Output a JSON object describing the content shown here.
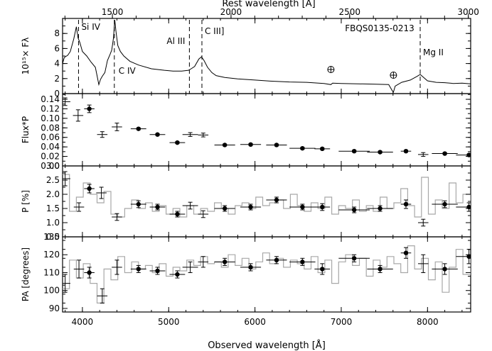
{
  "chart_data": {
    "type": "line",
    "figure_label": "FBQS0135-0213",
    "top_axis": {
      "label": "Rest wavelength [Å]",
      "range": [
        1290,
        3010
      ],
      "ticks": [
        "1500",
        "2000",
        "2500",
        "3000"
      ],
      "tick_values": [
        1500,
        2000,
        2500,
        3000
      ]
    },
    "x_axis": {
      "label": "Observed wavelength [Å]",
      "range": [
        3770,
        8500
      ],
      "ticks": [
        "4000",
        "5000",
        "6000",
        "7000",
        "8000"
      ],
      "tick_values": [
        4000,
        5000,
        6000,
        7000,
        8000
      ]
    },
    "lines": [
      {
        "label": "Si IV",
        "x": 3955
      },
      {
        "label": "C IV",
        "x": 4370
      },
      {
        "label": "Al III",
        "x": 5240
      },
      {
        "label": "C III]",
        "x": 5385
      },
      {
        "label": "Mg II",
        "x": 7915
      }
    ],
    "telluric_marks": [
      6880,
      7605
    ],
    "panels": [
      {
        "name": "flux",
        "ylabel": "10¹⁵× Fλ",
        "ylim": [
          0,
          10
        ],
        "yticks": [
          "0",
          "2",
          "4",
          "6",
          "8"
        ],
        "ytick_values": [
          0,
          2,
          4,
          6,
          8
        ],
        "spectrum": {
          "x": [
            3770,
            3790,
            3830,
            3860,
            3900,
            3930,
            3950,
            3970,
            4000,
            4050,
            4100,
            4150,
            4170,
            4190,
            4210,
            4230,
            4260,
            4290,
            4320,
            4340,
            4360,
            4375,
            4390,
            4410,
            4440,
            4480,
            4550,
            4650,
            4800,
            4950,
            5050,
            5150,
            5230,
            5260,
            5300,
            5350,
            5380,
            5410,
            5450,
            5500,
            5550,
            5650,
            5800,
            6000,
            6200,
            6400,
            6600,
            6800,
            6880,
            6900,
            7000,
            7200,
            7400,
            7550,
            7590,
            7605,
            7625,
            7700,
            7800,
            7880,
            7915,
            7950,
            8000,
            8100,
            8200,
            8300,
            8400,
            8500
          ],
          "y": [
            4.0,
            4.8,
            5.1,
            5.6,
            7.3,
            8.9,
            7.4,
            6.8,
            5.6,
            5.0,
            4.2,
            3.5,
            2.4,
            1.2,
            1.9,
            2.3,
            2.8,
            4.4,
            5.2,
            5.8,
            7.4,
            9.8,
            8.2,
            6.4,
            5.6,
            5.0,
            4.3,
            3.8,
            3.3,
            3.1,
            3.0,
            3.0,
            3.1,
            3.3,
            3.6,
            4.6,
            4.9,
            4.4,
            3.5,
            2.8,
            2.4,
            2.15,
            1.95,
            1.8,
            1.65,
            1.55,
            1.5,
            1.35,
            1.2,
            1.4,
            1.35,
            1.3,
            1.25,
            1.2,
            0.4,
            0.2,
            1.0,
            1.5,
            1.8,
            2.3,
            2.55,
            2.2,
            1.7,
            1.5,
            1.45,
            1.35,
            1.4,
            1.3
          ]
        }
      },
      {
        "name": "polarized-flux",
        "ylabel": "Flux*P",
        "ylim": [
          0.0,
          0.152
        ],
        "yticks": [
          "0.00",
          "0.02",
          "0.04",
          "0.06",
          "0.08",
          "0.10",
          "0.12",
          "0.14"
        ],
        "ytick_values": [
          0,
          0.02,
          0.04,
          0.06,
          0.08,
          0.1,
          0.12,
          0.14
        ],
        "points": [
          {
            "x": 3800,
            "y": 0.135,
            "xerr": 60,
            "yerr": 0.008,
            "filled": false
          },
          {
            "x": 3950,
            "y": 0.106,
            "xerr": 60,
            "yerr": 0.012,
            "filled": false
          },
          {
            "x": 4080,
            "y": 0.12,
            "xerr": 60,
            "yerr": 0.008,
            "filled": true
          },
          {
            "x": 4230,
            "y": 0.066,
            "xerr": 60,
            "yerr": 0.006,
            "filled": false
          },
          {
            "x": 4400,
            "y": 0.082,
            "xerr": 60,
            "yerr": 0.008,
            "filled": false
          },
          {
            "x": 4650,
            "y": 0.078,
            "xerr": 90,
            "yerr": 0.002,
            "filled": true
          },
          {
            "x": 4870,
            "y": 0.066,
            "xerr": 90,
            "yerr": 0.002,
            "filled": true
          },
          {
            "x": 5100,
            "y": 0.049,
            "xerr": 90,
            "yerr": 0.002,
            "filled": true
          },
          {
            "x": 5250,
            "y": 0.066,
            "xerr": 90,
            "yerr": 0.004,
            "filled": false
          },
          {
            "x": 5400,
            "y": 0.065,
            "xerr": 60,
            "yerr": 0.004,
            "filled": false
          },
          {
            "x": 5650,
            "y": 0.044,
            "xerr": 120,
            "yerr": 0.002,
            "filled": true
          },
          {
            "x": 5950,
            "y": 0.045,
            "xerr": 120,
            "yerr": 0.002,
            "filled": true
          },
          {
            "x": 6250,
            "y": 0.044,
            "xerr": 120,
            "yerr": 0.002,
            "filled": true
          },
          {
            "x": 6550,
            "y": 0.037,
            "xerr": 150,
            "yerr": 0.002,
            "filled": true
          },
          {
            "x": 6780,
            "y": 0.036,
            "xerr": 90,
            "yerr": 0.002,
            "filled": true
          },
          {
            "x": 7150,
            "y": 0.031,
            "xerr": 180,
            "yerr": 0.002,
            "filled": true
          },
          {
            "x": 7450,
            "y": 0.029,
            "xerr": 150,
            "yerr": 0.002,
            "filled": true
          },
          {
            "x": 7750,
            "y": 0.031,
            "xerr": 60,
            "yerr": 0.002,
            "filled": true
          },
          {
            "x": 7950,
            "y": 0.024,
            "xerr": 60,
            "yerr": 0.004,
            "filled": false
          },
          {
            "x": 8200,
            "y": 0.026,
            "xerr": 150,
            "yerr": 0.002,
            "filled": true
          },
          {
            "x": 8480,
            "y": 0.023,
            "xerr": 150,
            "yerr": 0.002,
            "filled": true
          }
        ]
      },
      {
        "name": "polarization-degree",
        "ylabel": "P [%]",
        "ylim": [
          0.5,
          3.0
        ],
        "yticks": [
          "0.5",
          "1.0",
          "1.5",
          "2.0",
          "2.5",
          "3.0"
        ],
        "ytick_values": [
          0.5,
          1.0,
          1.5,
          2.0,
          2.5,
          3.0
        ],
        "binned": {
          "x": [
            3770,
            3850,
            3930,
            4010,
            4090,
            4170,
            4250,
            4330,
            4410,
            4490,
            4570,
            4650,
            4730,
            4810,
            4890,
            4970,
            5050,
            5130,
            5210,
            5290,
            5370,
            5450,
            5530,
            5610,
            5690,
            5770,
            5850,
            5930,
            6010,
            6090,
            6170,
            6250,
            6330,
            6410,
            6490,
            6570,
            6650,
            6730,
            6810,
            6890,
            6970,
            7050,
            7130,
            7210,
            7290,
            7370,
            7450,
            7530,
            7610,
            7690,
            7770,
            7850,
            7930,
            8010,
            8090,
            8170,
            8250,
            8330,
            8410,
            8500
          ],
          "y": [
            2.7,
            1.4,
            1.9,
            2.4,
            2.0,
            1.7,
            2.1,
            1.3,
            1.2,
            1.5,
            1.8,
            1.5,
            1.7,
            1.4,
            1.6,
            1.3,
            1.5,
            1.2,
            1.6,
            1.3,
            1.5,
            1.4,
            1.7,
            1.5,
            1.3,
            1.6,
            1.7,
            1.5,
            1.9,
            1.6,
            1.7,
            1.8,
            1.5,
            2.0,
            1.6,
            1.4,
            1.7,
            1.5,
            1.9,
            1.3,
            1.6,
            1.5,
            1.8,
            1.4,
            1.6,
            1.4,
            1.9,
            1.5,
            1.7,
            2.2,
            1.6,
            1.2,
            2.6,
            1.3,
            1.8,
            1.5,
            2.4,
            1.7,
            2.0,
            1.5
          ]
        },
        "points": [
          {
            "x": 3800,
            "y": 2.55,
            "xerr": 60,
            "yerr": 0.25,
            "filled": false
          },
          {
            "x": 3960,
            "y": 1.55,
            "xerr": 60,
            "yerr": 0.15,
            "filled": false
          },
          {
            "x": 4080,
            "y": 2.2,
            "xerr": 60,
            "yerr": 0.15,
            "filled": true
          },
          {
            "x": 4220,
            "y": 2.05,
            "xerr": 60,
            "yerr": 0.2,
            "filled": false
          },
          {
            "x": 4400,
            "y": 1.2,
            "xerr": 60,
            "yerr": 0.12,
            "filled": false
          },
          {
            "x": 4650,
            "y": 1.65,
            "xerr": 90,
            "yerr": 0.12,
            "filled": true
          },
          {
            "x": 4870,
            "y": 1.55,
            "xerr": 90,
            "yerr": 0.1,
            "filled": true
          },
          {
            "x": 5100,
            "y": 1.3,
            "xerr": 90,
            "yerr": 0.1,
            "filled": true
          },
          {
            "x": 5250,
            "y": 1.6,
            "xerr": 90,
            "yerr": 0.12,
            "filled": false
          },
          {
            "x": 5400,
            "y": 1.3,
            "xerr": 60,
            "yerr": 0.12,
            "filled": false
          },
          {
            "x": 5650,
            "y": 1.5,
            "xerr": 120,
            "yerr": 0.1,
            "filled": true
          },
          {
            "x": 5950,
            "y": 1.55,
            "xerr": 120,
            "yerr": 0.1,
            "filled": true
          },
          {
            "x": 6250,
            "y": 1.8,
            "xerr": 120,
            "yerr": 0.1,
            "filled": true
          },
          {
            "x": 6550,
            "y": 1.55,
            "xerr": 150,
            "yerr": 0.1,
            "filled": true
          },
          {
            "x": 6780,
            "y": 1.55,
            "xerr": 90,
            "yerr": 0.12,
            "filled": true
          },
          {
            "x": 7150,
            "y": 1.45,
            "xerr": 180,
            "yerr": 0.1,
            "filled": true
          },
          {
            "x": 7450,
            "y": 1.5,
            "xerr": 150,
            "yerr": 0.1,
            "filled": true
          },
          {
            "x": 7750,
            "y": 1.65,
            "xerr": 60,
            "yerr": 0.15,
            "filled": true
          },
          {
            "x": 7950,
            "y": 1.0,
            "xerr": 60,
            "yerr": 0.12,
            "filled": false
          },
          {
            "x": 8200,
            "y": 1.65,
            "xerr": 150,
            "yerr": 0.12,
            "filled": true
          },
          {
            "x": 8480,
            "y": 1.55,
            "xerr": 150,
            "yerr": 0.15,
            "filled": true
          }
        ]
      },
      {
        "name": "polarization-angle",
        "ylabel": "PA [degrees]",
        "ylim": [
          88,
          130
        ],
        "yticks": [
          "90",
          "100",
          "110",
          "120",
          "130"
        ],
        "ytick_values": [
          90,
          100,
          110,
          120,
          130
        ],
        "binned": {
          "x": [
            3770,
            3850,
            3930,
            4010,
            4090,
            4170,
            4250,
            4330,
            4410,
            4490,
            4570,
            4650,
            4730,
            4810,
            4890,
            4970,
            5050,
            5130,
            5210,
            5290,
            5370,
            5450,
            5530,
            5610,
            5690,
            5770,
            5850,
            5930,
            6010,
            6090,
            6170,
            6250,
            6330,
            6410,
            6490,
            6570,
            6650,
            6730,
            6810,
            6890,
            6970,
            7050,
            7130,
            7210,
            7290,
            7370,
            7450,
            7530,
            7610,
            7690,
            7770,
            7850,
            7930,
            8010,
            8090,
            8170,
            8250,
            8330,
            8410,
            8500
          ],
          "y": [
            101,
            117,
            107,
            115,
            104,
            93,
            112,
            106,
            119,
            110,
            116,
            112,
            114,
            110,
            115,
            108,
            113,
            111,
            117,
            114,
            119,
            115,
            116,
            113,
            120,
            114,
            118,
            112,
            116,
            121,
            115,
            118,
            113,
            117,
            115,
            112,
            119,
            110,
            117,
            104,
            116,
            120,
            114,
            118,
            108,
            117,
            113,
            119,
            115,
            110,
            125,
            112,
            118,
            106,
            116,
            99,
            113,
            123,
            109,
            118
          ]
        },
        "points": [
          {
            "x": 3800,
            "y": 104,
            "xerr": 60,
            "yerr": 5,
            "filled": false
          },
          {
            "x": 3960,
            "y": 112,
            "xerr": 60,
            "yerr": 5,
            "filled": false
          },
          {
            "x": 4080,
            "y": 110,
            "xerr": 60,
            "yerr": 3,
            "filled": true
          },
          {
            "x": 4230,
            "y": 97,
            "xerr": 60,
            "yerr": 4,
            "filled": false
          },
          {
            "x": 4400,
            "y": 113,
            "xerr": 60,
            "yerr": 4,
            "filled": false
          },
          {
            "x": 4650,
            "y": 112,
            "xerr": 90,
            "yerr": 2,
            "filled": true
          },
          {
            "x": 4870,
            "y": 111,
            "xerr": 90,
            "yerr": 2,
            "filled": true
          },
          {
            "x": 5100,
            "y": 109,
            "xerr": 90,
            "yerr": 2,
            "filled": true
          },
          {
            "x": 5250,
            "y": 113,
            "xerr": 90,
            "yerr": 3,
            "filled": false
          },
          {
            "x": 5400,
            "y": 116,
            "xerr": 60,
            "yerr": 3,
            "filled": false
          },
          {
            "x": 5650,
            "y": 116,
            "xerr": 120,
            "yerr": 2,
            "filled": true
          },
          {
            "x": 5950,
            "y": 113,
            "xerr": 120,
            "yerr": 2,
            "filled": true
          },
          {
            "x": 6250,
            "y": 117,
            "xerr": 120,
            "yerr": 2,
            "filled": true
          },
          {
            "x": 6550,
            "y": 116,
            "xerr": 150,
            "yerr": 2,
            "filled": true
          },
          {
            "x": 6780,
            "y": 112,
            "xerr": 90,
            "yerr": 3,
            "filled": true
          },
          {
            "x": 7150,
            "y": 118,
            "xerr": 180,
            "yerr": 2,
            "filled": true
          },
          {
            "x": 7450,
            "y": 112,
            "xerr": 150,
            "yerr": 2,
            "filled": true
          },
          {
            "x": 7750,
            "y": 121,
            "xerr": 60,
            "yerr": 3,
            "filled": true
          },
          {
            "x": 7950,
            "y": 115,
            "xerr": 60,
            "yerr": 5,
            "filled": false
          },
          {
            "x": 8200,
            "y": 112,
            "xerr": 150,
            "yerr": 3,
            "filled": true
          },
          {
            "x": 8480,
            "y": 119,
            "xerr": 150,
            "yerr": 4,
            "filled": true
          }
        ]
      }
    ]
  }
}
